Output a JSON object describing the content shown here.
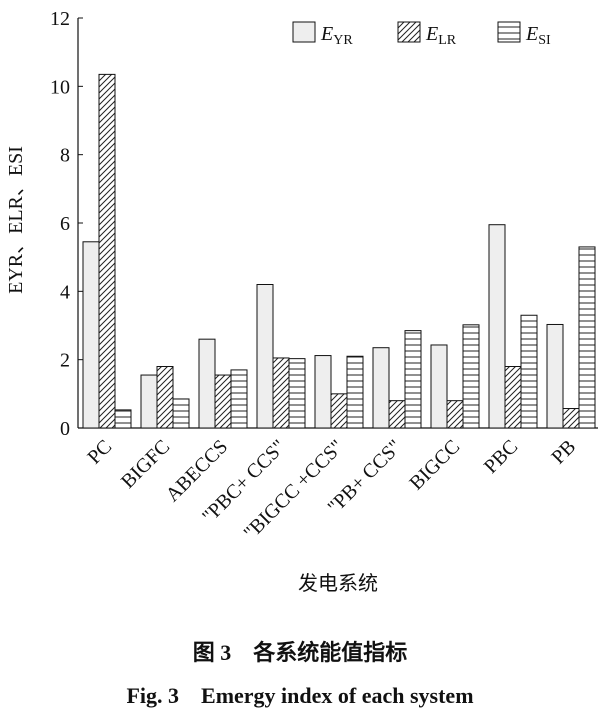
{
  "chart_data": {
    "type": "bar",
    "y_label": "EYR、ELR、ESI",
    "x_label": "发电系统",
    "caption_cn": "图 3　各系统能值指标",
    "caption_en": "Fig. 3　Emergy index of each system",
    "categories": [
      "PC",
      "BIGFC",
      "ABECCS",
      "\"PBC+ CCS\"",
      "\"BIGCC +CCS\"",
      "\"PB+ CCS\"",
      "BIGCC",
      "PBC",
      "PB"
    ],
    "series": [
      {
        "name": "EYR",
        "color": "#eeeeee",
        "pattern": "solid",
        "values": [
          5.45,
          1.55,
          2.6,
          4.2,
          2.12,
          2.35,
          2.43,
          5.95,
          3.03
        ]
      },
      {
        "name": "ELR",
        "color": "#ffffff",
        "pattern": "diagonal",
        "values": [
          10.35,
          1.8,
          1.55,
          2.05,
          1.0,
          0.8,
          0.8,
          1.8,
          0.57
        ]
      },
      {
        "name": "ESI",
        "color": "#ffffff",
        "pattern": "horizontal",
        "values": [
          0.53,
          0.85,
          1.7,
          2.03,
          2.1,
          2.85,
          3.02,
          3.3,
          5.3
        ]
      }
    ],
    "ylim": [
      0,
      12
    ],
    "yticks": [
      0,
      2,
      4,
      6,
      8,
      10,
      12
    ],
    "grid": false,
    "legend": "top-right"
  }
}
